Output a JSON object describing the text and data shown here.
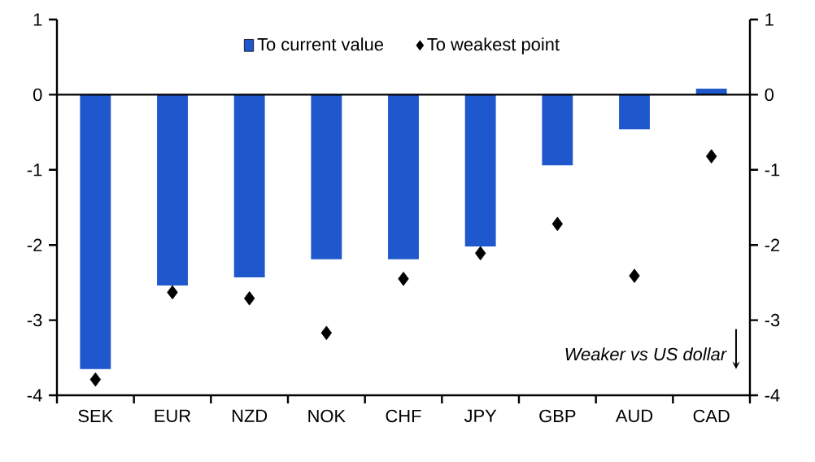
{
  "chart_data": {
    "type": "bar",
    "categories": [
      "SEK",
      "EUR",
      "NZD",
      "NOK",
      "CHF",
      "JPY",
      "GBP",
      "AUD",
      "CAD"
    ],
    "series": [
      {
        "name": "To current value",
        "color": "#1f57cc",
        "values": [
          -3.65,
          -2.54,
          -2.43,
          -2.19,
          -2.19,
          -2.02,
          -0.94,
          -0.46,
          0.08
        ]
      },
      {
        "name": "To weakest point",
        "type": "scatter",
        "color": "#000000",
        "marker": "diamond",
        "values": [
          -3.79,
          -2.63,
          -2.71,
          -3.17,
          -2.45,
          -2.11,
          -1.72,
          -2.41,
          -0.82
        ]
      }
    ],
    "ylim": [
      -4,
      1
    ],
    "yticks": [
      -4,
      -3,
      -2,
      -1,
      0,
      1
    ],
    "y2lim": [
      -4,
      1
    ],
    "y2ticks": [
      -4,
      -3,
      -2,
      -1,
      0,
      1
    ],
    "legend": "top",
    "ref_lines": [
      {
        "axis": "y",
        "value": 0,
        "color": "#000000"
      }
    ],
    "grid": false,
    "annotations": [
      "Weaker vs US dollar"
    ]
  }
}
